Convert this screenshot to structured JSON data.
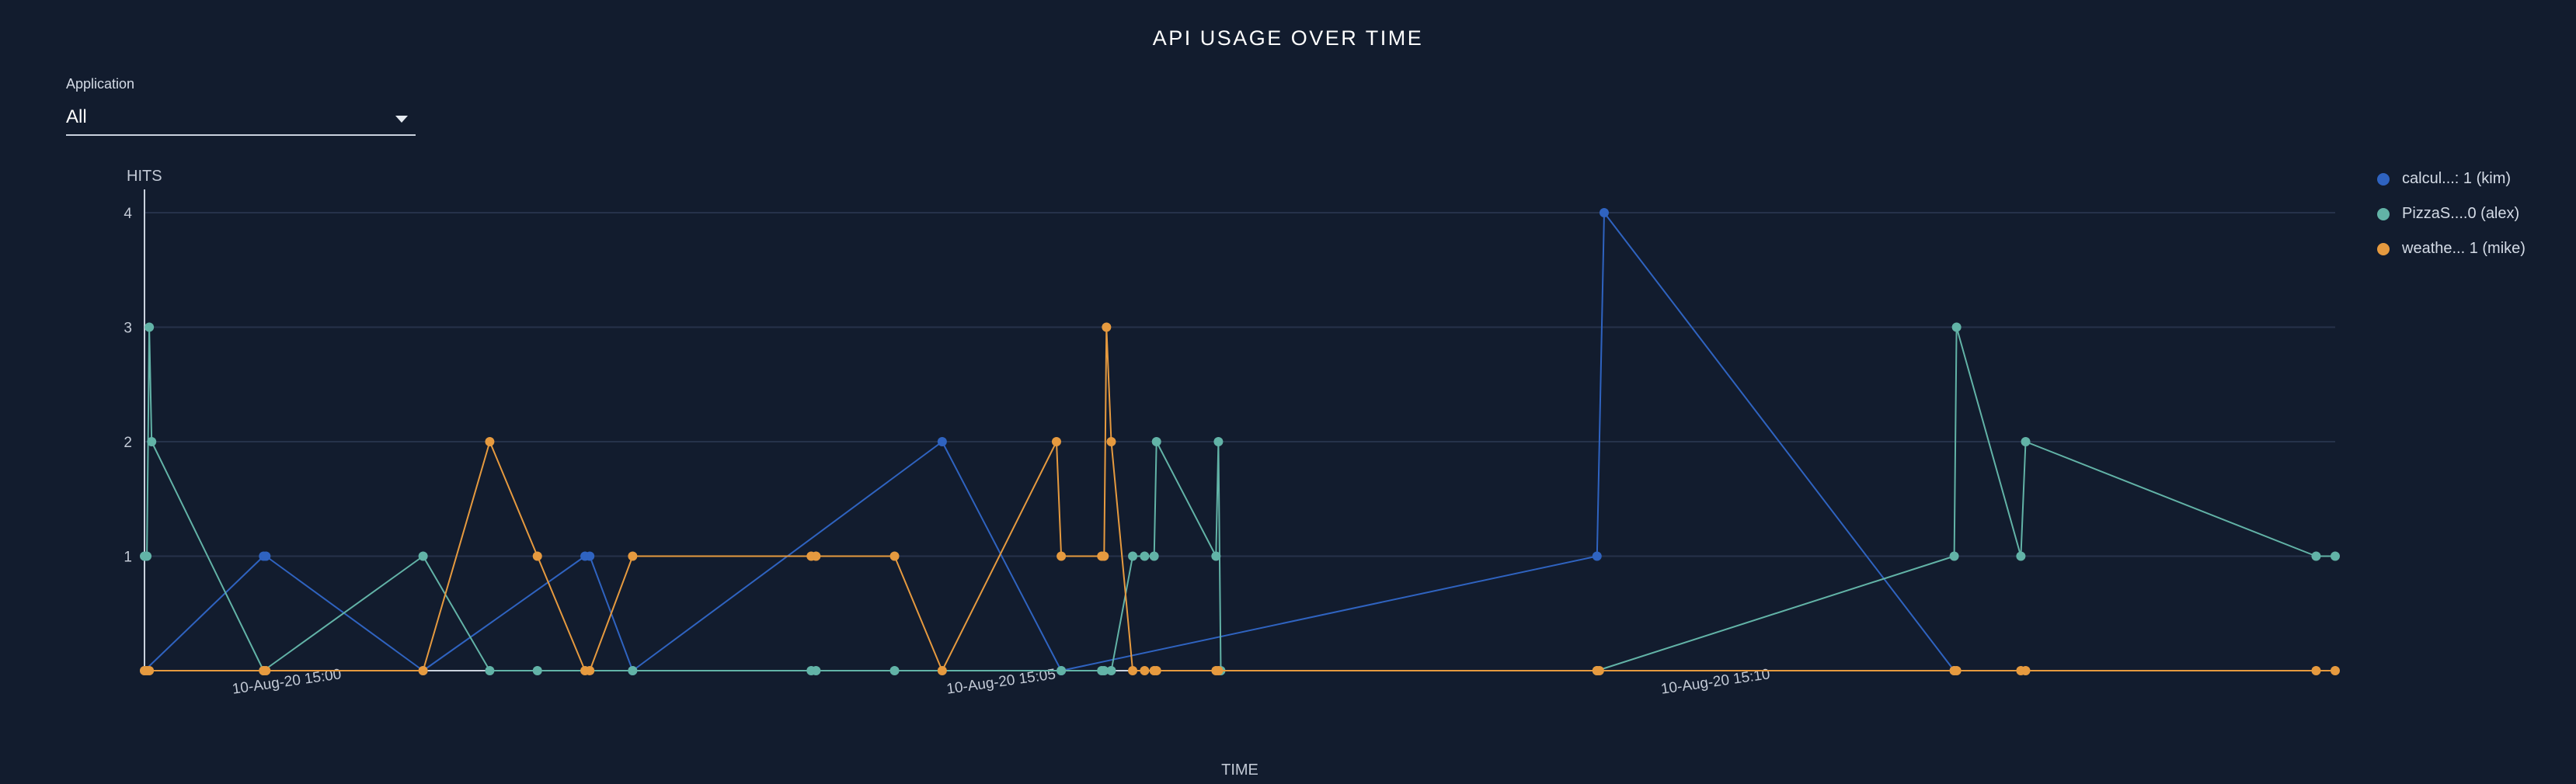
{
  "title": "API USAGE OVER TIME",
  "filter": {
    "label": "Application",
    "value": "All"
  },
  "colors": {
    "grid": "#26324a",
    "axis": "#c9d1dd",
    "tick_text": "#c3cad6"
  },
  "chart_data": {
    "type": "line",
    "ylabel": "HITS",
    "xlabel": "TIME",
    "ylim": [
      0,
      4
    ],
    "yticks": [
      1,
      2,
      3,
      4
    ],
    "xlim": [
      "2020-08-10 14:59:00",
      "2020-08-10 15:14:20"
    ],
    "xticks": [
      {
        "time": "2020-08-10 15:00:00",
        "label": "10-Aug-20 15:00"
      },
      {
        "time": "2020-08-10 15:05:00",
        "label": "10-Aug-20 15:05"
      },
      {
        "time": "2020-08-10 15:10:00",
        "label": "10-Aug-20 15:10"
      }
    ],
    "grid": true,
    "legend_position": "right",
    "series": [
      {
        "name": "calcul...: 1 (kim)",
        "color": "#2f63c0",
        "points": [
          [
            "2020-08-10 14:59:00",
            0
          ],
          [
            "2020-08-10 14:59:50",
            1
          ],
          [
            "2020-08-10 14:59:51",
            1
          ],
          [
            "2020-08-10 15:00:57",
            0
          ],
          [
            "2020-08-10 15:02:05",
            1
          ],
          [
            "2020-08-10 15:02:07",
            1
          ],
          [
            "2020-08-10 15:02:25",
            0
          ],
          [
            "2020-08-10 15:04:35",
            2
          ],
          [
            "2020-08-10 15:05:25",
            0
          ],
          [
            "2020-08-10 15:09:10",
            1
          ],
          [
            "2020-08-10 15:09:13",
            4
          ],
          [
            "2020-08-10 15:11:40",
            0
          ]
        ]
      },
      {
        "name": "PizzaS....0 (alex)",
        "color": "#62b3a7",
        "points": [
          [
            "2020-08-10 14:59:00",
            1
          ],
          [
            "2020-08-10 14:59:01",
            1
          ],
          [
            "2020-08-10 14:59:02",
            3
          ],
          [
            "2020-08-10 14:59:03",
            2
          ],
          [
            "2020-08-10 14:59:50",
            0
          ],
          [
            "2020-08-10 15:00:57",
            1
          ],
          [
            "2020-08-10 15:01:25",
            0
          ],
          [
            "2020-08-10 15:01:45",
            0
          ],
          [
            "2020-08-10 15:02:25",
            0
          ],
          [
            "2020-08-10 15:03:40",
            0
          ],
          [
            "2020-08-10 15:03:42",
            0
          ],
          [
            "2020-08-10 15:04:15",
            0
          ],
          [
            "2020-08-10 15:05:25",
            0
          ],
          [
            "2020-08-10 15:05:42",
            0
          ],
          [
            "2020-08-10 15:05:43",
            0
          ],
          [
            "2020-08-10 15:05:46",
            0
          ],
          [
            "2020-08-10 15:05:55",
            1
          ],
          [
            "2020-08-10 15:06:00",
            1
          ],
          [
            "2020-08-10 15:06:04",
            1
          ],
          [
            "2020-08-10 15:06:05",
            2
          ],
          [
            "2020-08-10 15:06:30",
            1
          ],
          [
            "2020-08-10 15:06:31",
            2
          ],
          [
            "2020-08-10 15:06:32",
            0
          ],
          [
            "2020-08-10 15:09:10",
            0
          ],
          [
            "2020-08-10 15:11:40",
            1
          ],
          [
            "2020-08-10 15:11:41",
            3
          ],
          [
            "2020-08-10 15:12:08",
            1
          ],
          [
            "2020-08-10 15:12:10",
            2
          ],
          [
            "2020-08-10 15:14:12",
            1
          ],
          [
            "2020-08-10 15:14:20",
            1
          ]
        ]
      },
      {
        "name": "weathe... 1 (mike)",
        "color": "#e69a3f",
        "points": [
          [
            "2020-08-10 14:59:00",
            0
          ],
          [
            "2020-08-10 14:59:01",
            0
          ],
          [
            "2020-08-10 14:59:02",
            0
          ],
          [
            "2020-08-10 14:59:50",
            0
          ],
          [
            "2020-08-10 14:59:51",
            0
          ],
          [
            "2020-08-10 15:00:57",
            0
          ],
          [
            "2020-08-10 15:01:25",
            2
          ],
          [
            "2020-08-10 15:01:45",
            1
          ],
          [
            "2020-08-10 15:02:05",
            0
          ],
          [
            "2020-08-10 15:02:07",
            0
          ],
          [
            "2020-08-10 15:02:25",
            1
          ],
          [
            "2020-08-10 15:03:40",
            1
          ],
          [
            "2020-08-10 15:03:42",
            1
          ],
          [
            "2020-08-10 15:04:15",
            1
          ],
          [
            "2020-08-10 15:04:35",
            0
          ],
          [
            "2020-08-10 15:05:23",
            2
          ],
          [
            "2020-08-10 15:05:25",
            1
          ],
          [
            "2020-08-10 15:05:42",
            1
          ],
          [
            "2020-08-10 15:05:43",
            1
          ],
          [
            "2020-08-10 15:05:44",
            3
          ],
          [
            "2020-08-10 15:05:46",
            2
          ],
          [
            "2020-08-10 15:05:55",
            0
          ],
          [
            "2020-08-10 15:06:00",
            0
          ],
          [
            "2020-08-10 15:06:04",
            0
          ],
          [
            "2020-08-10 15:06:05",
            0
          ],
          [
            "2020-08-10 15:06:30",
            0
          ],
          [
            "2020-08-10 15:06:31",
            0
          ],
          [
            "2020-08-10 15:09:10",
            0
          ],
          [
            "2020-08-10 15:09:11",
            0
          ],
          [
            "2020-08-10 15:11:40",
            0
          ],
          [
            "2020-08-10 15:11:41",
            0
          ],
          [
            "2020-08-10 15:12:08",
            0
          ],
          [
            "2020-08-10 15:12:10",
            0
          ],
          [
            "2020-08-10 15:14:12",
            0
          ],
          [
            "2020-08-10 15:14:20",
            0
          ]
        ]
      }
    ]
  }
}
